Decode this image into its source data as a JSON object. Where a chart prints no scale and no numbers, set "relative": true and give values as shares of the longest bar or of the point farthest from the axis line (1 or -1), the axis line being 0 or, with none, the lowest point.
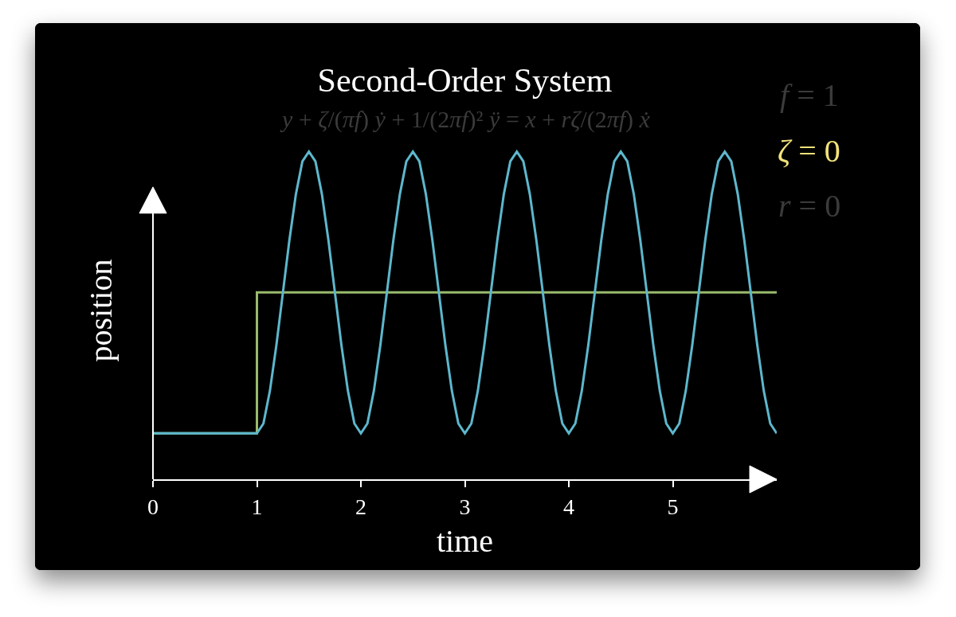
{
  "chart_data": {
    "type": "line",
    "title": "Second-Order System",
    "subtitle": "y + ζ/(πf) ẏ + 1/(2πf)² ÿ = x + rζ/(2πf) ẋ",
    "xlabel": "time",
    "ylabel": "position",
    "relative": true,
    "xlim": [
      0,
      6
    ],
    "xticks": [
      0,
      1,
      2,
      3,
      4,
      5
    ],
    "annotations": [
      "f = 1",
      "ζ = 0",
      "r = 0"
    ],
    "series": [
      {
        "type": "step",
        "color": "#98ba6c",
        "x": [
          0,
          1,
          6
        ],
        "values": [
          0.14,
          0.57,
          0.57
        ]
      },
      {
        "color": "#5db7cd",
        "x": [
          0,
          1,
          1.0625,
          1.125,
          1.1875,
          1.25,
          1.3125,
          1.375,
          1.4375,
          1.5,
          1.5625,
          1.625,
          1.6875,
          1.75,
          1.8125,
          1.875,
          1.9375,
          2,
          2.0625,
          2.125,
          2.1875,
          2.25,
          2.3125,
          2.375,
          2.4375,
          2.5,
          2.5625,
          2.625,
          2.6875,
          2.75,
          2.8125,
          2.875,
          2.9375,
          3,
          3.0625,
          3.125,
          3.1875,
          3.25,
          3.3125,
          3.375,
          3.4375,
          3.5,
          3.5625,
          3.625,
          3.6875,
          3.75,
          3.8125,
          3.875,
          3.9375,
          4,
          4.0625,
          4.125,
          4.1875,
          4.25,
          4.3125,
          4.375,
          4.4375,
          4.5,
          4.5625,
          4.625,
          4.6875,
          4.75,
          4.8125,
          4.875,
          4.9375,
          5,
          5.0625,
          5.125,
          5.1875,
          5.25,
          5.3125,
          5.375,
          5.4375,
          5.5,
          5.5625,
          5.625,
          5.6875,
          5.75,
          5.8125,
          5.875,
          5.9375,
          6
        ],
        "values": [
          0.14,
          0.14,
          0.17,
          0.27,
          0.41,
          0.57,
          0.73,
          0.87,
          0.97,
          1,
          0.97,
          0.87,
          0.73,
          0.57,
          0.41,
          0.27,
          0.17,
          0.14,
          0.17,
          0.27,
          0.41,
          0.57,
          0.73,
          0.87,
          0.97,
          1,
          0.97,
          0.87,
          0.73,
          0.57,
          0.41,
          0.27,
          0.17,
          0.14,
          0.17,
          0.27,
          0.41,
          0.57,
          0.73,
          0.87,
          0.97,
          1,
          0.97,
          0.87,
          0.73,
          0.57,
          0.41,
          0.27,
          0.17,
          0.14,
          0.17,
          0.27,
          0.41,
          0.57,
          0.73,
          0.87,
          0.97,
          1,
          0.97,
          0.87,
          0.73,
          0.57,
          0.41,
          0.27,
          0.17,
          0.14,
          0.17,
          0.27,
          0.41,
          0.57,
          0.73,
          0.87,
          0.97,
          1,
          0.97,
          0.87,
          0.73,
          0.57,
          0.41,
          0.27,
          0.17,
          0.14
        ]
      }
    ]
  }
}
